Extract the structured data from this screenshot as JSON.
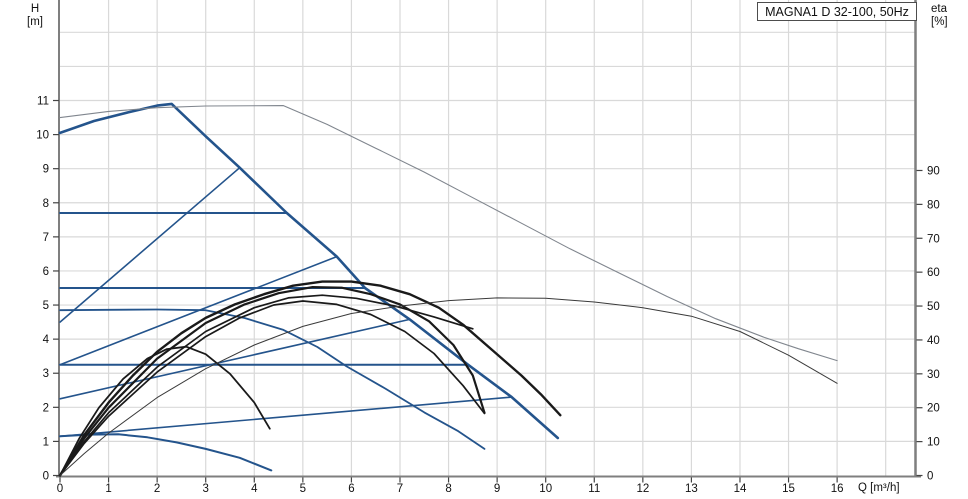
{
  "header": {
    "title": "MAGNA1 D 32-100, 50Hz"
  },
  "axes": {
    "left": {
      "title": "H",
      "unit": "[m]",
      "ticks": [
        0,
        1,
        2,
        3,
        4,
        5,
        6,
        7,
        8,
        9,
        10,
        11
      ]
    },
    "right": {
      "title": "eta",
      "unit": "[%]",
      "ticks": [
        0,
        10,
        20,
        30,
        40,
        50,
        60,
        70,
        80,
        90
      ]
    },
    "x": {
      "label": "Q [m³/h]",
      "ticks": [
        0,
        1,
        2,
        3,
        4,
        5,
        6,
        7,
        8,
        9,
        10,
        11,
        12,
        13,
        14,
        15,
        16
      ]
    }
  },
  "chart_data": {
    "type": "line",
    "title": "MAGNA1 D 32-100, 50Hz",
    "xlabel": "Q [m³/h]",
    "ylabel_left": "H [m]",
    "ylabel_right": "eta [%]",
    "xlim": [
      0,
      17.6
    ],
    "ylim_H": [
      0,
      13.95
    ],
    "ylim_eta": [
      0,
      100
    ],
    "grid": {
      "x_step": 1,
      "x_max": 17,
      "h_step": 1,
      "h_max": 14,
      "color": "#d9d9d9"
    },
    "colors": {
      "pump_blue": "#24548C",
      "eta_black": "#1a1a1a",
      "twin_gray": "#80868e",
      "axis_gray": "#7f7f7f"
    },
    "series": [
      {
        "name": "max-curve",
        "axis": "H",
        "color": "#24548C",
        "width": 2.6,
        "points": [
          [
            0,
            10.05
          ],
          [
            0.7,
            10.4
          ],
          [
            1.4,
            10.65
          ],
          [
            2.0,
            10.85
          ],
          [
            2.3,
            10.9
          ],
          [
            3.0,
            9.95
          ],
          [
            3.7,
            9.03
          ],
          [
            4.67,
            7.7
          ],
          [
            5.7,
            6.42
          ],
          [
            6.28,
            5.5
          ],
          [
            7.2,
            4.58
          ],
          [
            8.4,
            3.25
          ],
          [
            9.3,
            2.3
          ],
          [
            10.25,
            1.1
          ]
        ]
      },
      {
        "name": "twin-max-curve",
        "axis": "H",
        "color": "#80868e",
        "width": 1.1,
        "points": [
          [
            0,
            10.5
          ],
          [
            1,
            10.68
          ],
          [
            2,
            10.79
          ],
          [
            3,
            10.84
          ],
          [
            4.6,
            10.85
          ],
          [
            5.5,
            10.3
          ],
          [
            6.5,
            9.6
          ],
          [
            7.5,
            8.9
          ],
          [
            8.5,
            8.15
          ],
          [
            9.5,
            7.4
          ],
          [
            10.5,
            6.65
          ],
          [
            11.5,
            5.95
          ],
          [
            12.5,
            5.25
          ],
          [
            13.5,
            4.6
          ],
          [
            14.5,
            4.05
          ],
          [
            15.2,
            3.72
          ],
          [
            16,
            3.37
          ]
        ]
      },
      {
        "name": "min-curve",
        "axis": "H",
        "color": "#24548C",
        "width": 2.0,
        "points": [
          [
            0,
            1.15
          ],
          [
            0.6,
            1.2
          ],
          [
            1.2,
            1.21
          ],
          [
            1.8,
            1.12
          ],
          [
            2.4,
            0.97
          ],
          [
            3.0,
            0.78
          ],
          [
            3.7,
            0.52
          ],
          [
            4.35,
            0.15
          ]
        ]
      },
      {
        "name": "curve-ii",
        "axis": "H",
        "color": "#24548C",
        "width": 1.8,
        "points": [
          [
            0,
            4.85
          ],
          [
            1,
            4.86
          ],
          [
            2,
            4.87
          ],
          [
            3,
            4.85
          ],
          [
            3.8,
            4.62
          ],
          [
            4.6,
            4.27
          ],
          [
            5.3,
            3.77
          ],
          [
            5.9,
            3.2
          ],
          [
            6.7,
            2.55
          ],
          [
            7.5,
            1.85
          ],
          [
            8.2,
            1.3
          ],
          [
            8.74,
            0.78
          ]
        ]
      },
      {
        "name": "const-pressure-line-7-7",
        "axis": "H",
        "color": "#24548C",
        "width": 2.0,
        "points": [
          [
            0,
            7.7
          ],
          [
            4.67,
            7.7
          ]
        ]
      },
      {
        "name": "const-pressure-line-5-5",
        "axis": "H",
        "color": "#24548C",
        "width": 2.0,
        "points": [
          [
            0,
            5.5
          ],
          [
            6.28,
            5.5
          ]
        ]
      },
      {
        "name": "const-pressure-line-3-25",
        "axis": "H",
        "color": "#24548C",
        "width": 2.0,
        "points": [
          [
            0,
            3.25
          ],
          [
            8.4,
            3.25
          ]
        ]
      },
      {
        "name": "prop-pressure-line-4-5",
        "axis": "H",
        "color": "#24548C",
        "width": 1.6,
        "points": [
          [
            0,
            4.5
          ],
          [
            3.7,
            9.03
          ]
        ]
      },
      {
        "name": "prop-pressure-line-3-25",
        "axis": "H",
        "color": "#24548C",
        "width": 1.6,
        "points": [
          [
            0,
            3.25
          ],
          [
            5.7,
            6.42
          ]
        ]
      },
      {
        "name": "prop-pressure-line-2-25",
        "axis": "H",
        "color": "#24548C",
        "width": 1.6,
        "points": [
          [
            0,
            2.25
          ],
          [
            7.2,
            4.58
          ]
        ]
      },
      {
        "name": "prop-pressure-line-1-15",
        "axis": "H",
        "color": "#24548C",
        "width": 1.6,
        "points": [
          [
            0,
            1.15
          ],
          [
            9.3,
            2.3
          ]
        ]
      },
      {
        "name": "eta-max",
        "axis": "eta",
        "color": "#1a1a1a",
        "width": 2.4,
        "points": [
          [
            0,
            0
          ],
          [
            0.5,
            12
          ],
          [
            1,
            21.5
          ],
          [
            1.5,
            29.5
          ],
          [
            2,
            36.5
          ],
          [
            2.5,
            42
          ],
          [
            3,
            46.5
          ],
          [
            3.6,
            50.5
          ],
          [
            4.2,
            53.5
          ],
          [
            4.8,
            56
          ],
          [
            5.4,
            57.2
          ],
          [
            6,
            57.2
          ],
          [
            6.6,
            56
          ],
          [
            7.2,
            53.5
          ],
          [
            7.8,
            49.5
          ],
          [
            8.3,
            44.5
          ],
          [
            8.9,
            37
          ],
          [
            9.5,
            29.5
          ],
          [
            9.9,
            24
          ],
          [
            10.3,
            17.8
          ]
        ]
      },
      {
        "name": "eta-ii",
        "axis": "eta",
        "color": "#1a1a1a",
        "width": 2.2,
        "points": [
          [
            0,
            0
          ],
          [
            0.5,
            11
          ],
          [
            1,
            20
          ],
          [
            2,
            34.5
          ],
          [
            3,
            45
          ],
          [
            3.8,
            50.5
          ],
          [
            4.5,
            53.8
          ],
          [
            5.2,
            55.6
          ],
          [
            5.8,
            55.4
          ],
          [
            6.4,
            53.5
          ],
          [
            7,
            50.5
          ],
          [
            7.6,
            45.5
          ],
          [
            8.1,
            38.5
          ],
          [
            8.5,
            29.5
          ],
          [
            8.74,
            18.5
          ]
        ]
      },
      {
        "name": "eta-const-pressure",
        "axis": "eta",
        "color": "#1a1a1a",
        "width": 1.7,
        "points": [
          [
            0,
            0
          ],
          [
            0.5,
            10
          ],
          [
            1,
            18.5
          ],
          [
            2,
            32
          ],
          [
            3,
            42.5
          ],
          [
            4,
            49.5
          ],
          [
            4.7,
            52.4
          ],
          [
            5.4,
            53.2
          ],
          [
            6.1,
            52.3
          ],
          [
            6.9,
            50
          ],
          [
            7.7,
            46.8
          ],
          [
            8.5,
            43.3
          ]
        ]
      },
      {
        "name": "eta-prop-pressure",
        "axis": "eta",
        "color": "#1a1a1a",
        "width": 1.7,
        "points": [
          [
            0,
            0
          ],
          [
            0.5,
            9.5
          ],
          [
            1,
            17.5
          ],
          [
            2,
            30.5
          ],
          [
            3,
            41
          ],
          [
            3.7,
            46.5
          ],
          [
            4.4,
            50.3
          ],
          [
            5,
            51.5
          ],
          [
            5.7,
            50.5
          ],
          [
            6.4,
            47.5
          ],
          [
            7.1,
            42.5
          ],
          [
            7.7,
            36
          ],
          [
            8.3,
            26.5
          ],
          [
            8.74,
            18.3
          ]
        ]
      },
      {
        "name": "eta-min",
        "axis": "eta",
        "color": "#1a1a1a",
        "width": 1.8,
        "points": [
          [
            0,
            0
          ],
          [
            0.4,
            11
          ],
          [
            0.8,
            20
          ],
          [
            1.3,
            28.5
          ],
          [
            1.8,
            34.5
          ],
          [
            2.2,
            37.3
          ],
          [
            2.6,
            38
          ],
          [
            3,
            35.8
          ],
          [
            3.5,
            30
          ],
          [
            4,
            21.5
          ],
          [
            4.32,
            13.8
          ]
        ]
      },
      {
        "name": "eta-twin",
        "axis": "eta",
        "color": "#3a3a3a",
        "width": 1.0,
        "points": [
          [
            0,
            0
          ],
          [
            0.5,
            6.5
          ],
          [
            1,
            12.5
          ],
          [
            2,
            23
          ],
          [
            3,
            31.5
          ],
          [
            4,
            38.5
          ],
          [
            5,
            44
          ],
          [
            6,
            47.8
          ],
          [
            7,
            50
          ],
          [
            8,
            51.6
          ],
          [
            9,
            52.4
          ],
          [
            10,
            52.3
          ],
          [
            11,
            51.2
          ],
          [
            12,
            49.5
          ],
          [
            13,
            47
          ],
          [
            14,
            42.5
          ],
          [
            15,
            35.5
          ],
          [
            16,
            27.2
          ]
        ]
      }
    ]
  }
}
